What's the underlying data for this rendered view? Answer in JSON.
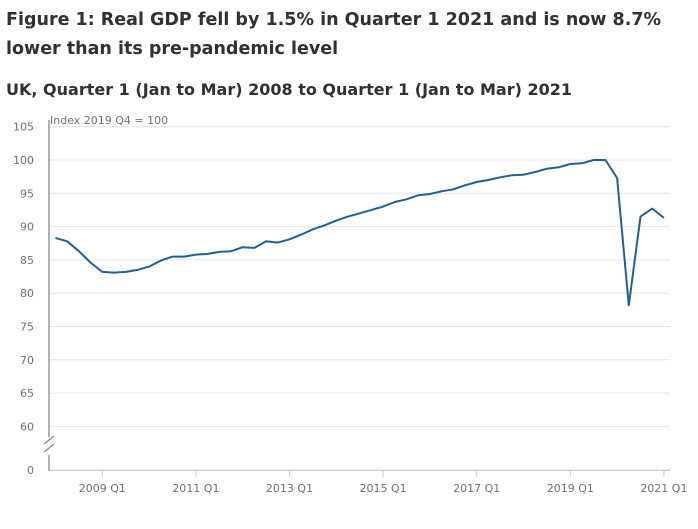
{
  "chart_data": {
    "type": "line",
    "title": "Figure 1: Real GDP fell by 1.5% in Quarter 1 2021 and is now 8.7% lower than its pre-pandemic level",
    "subtitle": "UK, Quarter 1 (Jan to Mar) 2008 to Quarter 1 (Jan to Mar) 2021",
    "ylabel": "Index 2019 Q4 = 100",
    "xlabel": "",
    "ylim": [
      0,
      105
    ],
    "y_axis_break": [
      0,
      60
    ],
    "y_ticks": [
      "105",
      "100",
      "95",
      "90",
      "85",
      "80",
      "75",
      "70",
      "65",
      "60",
      "0"
    ],
    "x_ticks": [
      "2009 Q1",
      "2011 Q1",
      "2013 Q1",
      "2015 Q1",
      "2017 Q1",
      "2019 Q1",
      "2021 Q1"
    ],
    "grid": true,
    "color": "#206095",
    "x_start": "2008 Q1",
    "x_end": "2021 Q1",
    "values": [
      88.3,
      87.8,
      86.3,
      84.6,
      83.2,
      83.1,
      83.2,
      83.5,
      84.0,
      84.9,
      85.5,
      85.5,
      85.8,
      85.9,
      86.2,
      86.3,
      86.9,
      86.8,
      87.8,
      87.6,
      88.1,
      88.8,
      89.6,
      90.2,
      90.9,
      91.5,
      92.0,
      92.5,
      93.0,
      93.7,
      94.1,
      94.7,
      94.9,
      95.3,
      95.6,
      96.2,
      96.7,
      97.0,
      97.4,
      97.7,
      97.8,
      98.2,
      98.7,
      98.9,
      99.4,
      99.5,
      100.0,
      100.0,
      97.3,
      78.2,
      91.5,
      92.7,
      91.3
    ]
  }
}
